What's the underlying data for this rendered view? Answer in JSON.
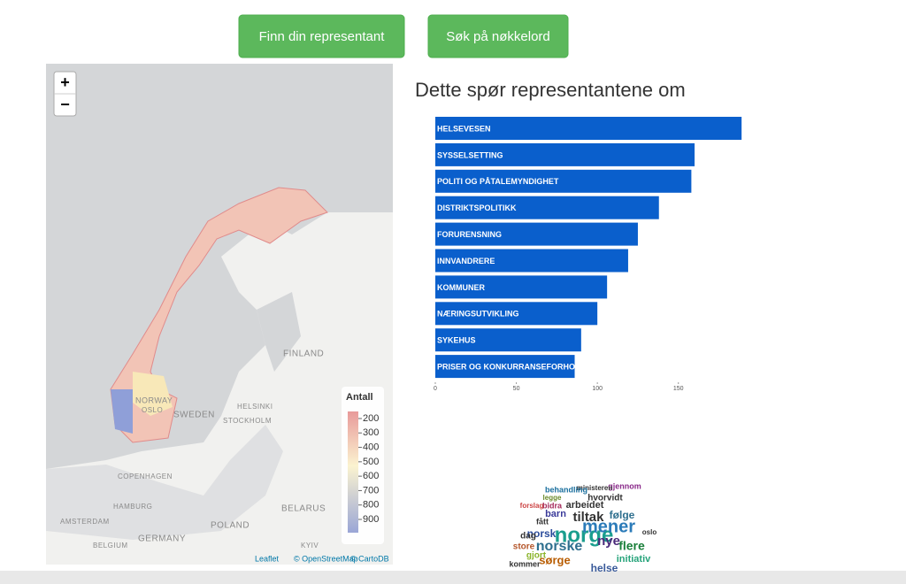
{
  "buttons": [
    "Finn din representant",
    "Søk på nøkkelord"
  ],
  "map": {
    "zoom": [
      "+",
      "−"
    ],
    "labels": [
      "FINLAND",
      "NORWAY",
      "SWEDEN",
      "OSLO",
      "HELSINKI",
      "STOCKHOLM",
      "COPENHAGEN",
      "HAMBURG",
      "AMSTERDAM",
      "BELARUS",
      "POLAND",
      "GERMANY",
      "BELGIUM",
      "KYIV"
    ],
    "legend": {
      "title": "Antall",
      "ticks": [
        200,
        300,
        400,
        500,
        600,
        700,
        800,
        900
      ]
    },
    "attribution": [
      "Leaflet",
      "© OpenStreetMap",
      "© CartoDB"
    ]
  },
  "chart_data": {
    "type": "bar",
    "title": "Dette spør representantene om",
    "categories": [
      "HELSEVESEN",
      "SYSSELSETTING",
      "POLITI OG PÅTALEMYNDIGHET",
      "DISTRIKTSPOLITIKK",
      "FORURENSNING",
      "INNVANDRERE",
      "KOMMUNER",
      "NÆRINGSUTVIKLING",
      "SYKEHUS",
      "PRISER OG KONKURRANSEFORHOLD"
    ],
    "values": [
      189,
      160,
      158,
      138,
      125,
      119,
      106,
      100,
      90,
      86
    ],
    "color": "#0a5fcc",
    "xlim": [
      0,
      190
    ],
    "xticks": [
      0,
      50,
      100,
      150
    ]
  },
  "word_cloud": {
    "words": [
      "norge",
      "mener",
      "norske",
      "tiltak",
      "nye",
      "flere",
      "følge",
      "arbeidet",
      "barn",
      "norsk",
      "sørge",
      "initiativ",
      "hvorvidt",
      "gjennom",
      "ministeren",
      "behandling",
      "store",
      "dag",
      "gjort",
      "bidra",
      "kommer",
      "helse",
      "fått",
      "forslag",
      "legge",
      "oslo"
    ]
  }
}
